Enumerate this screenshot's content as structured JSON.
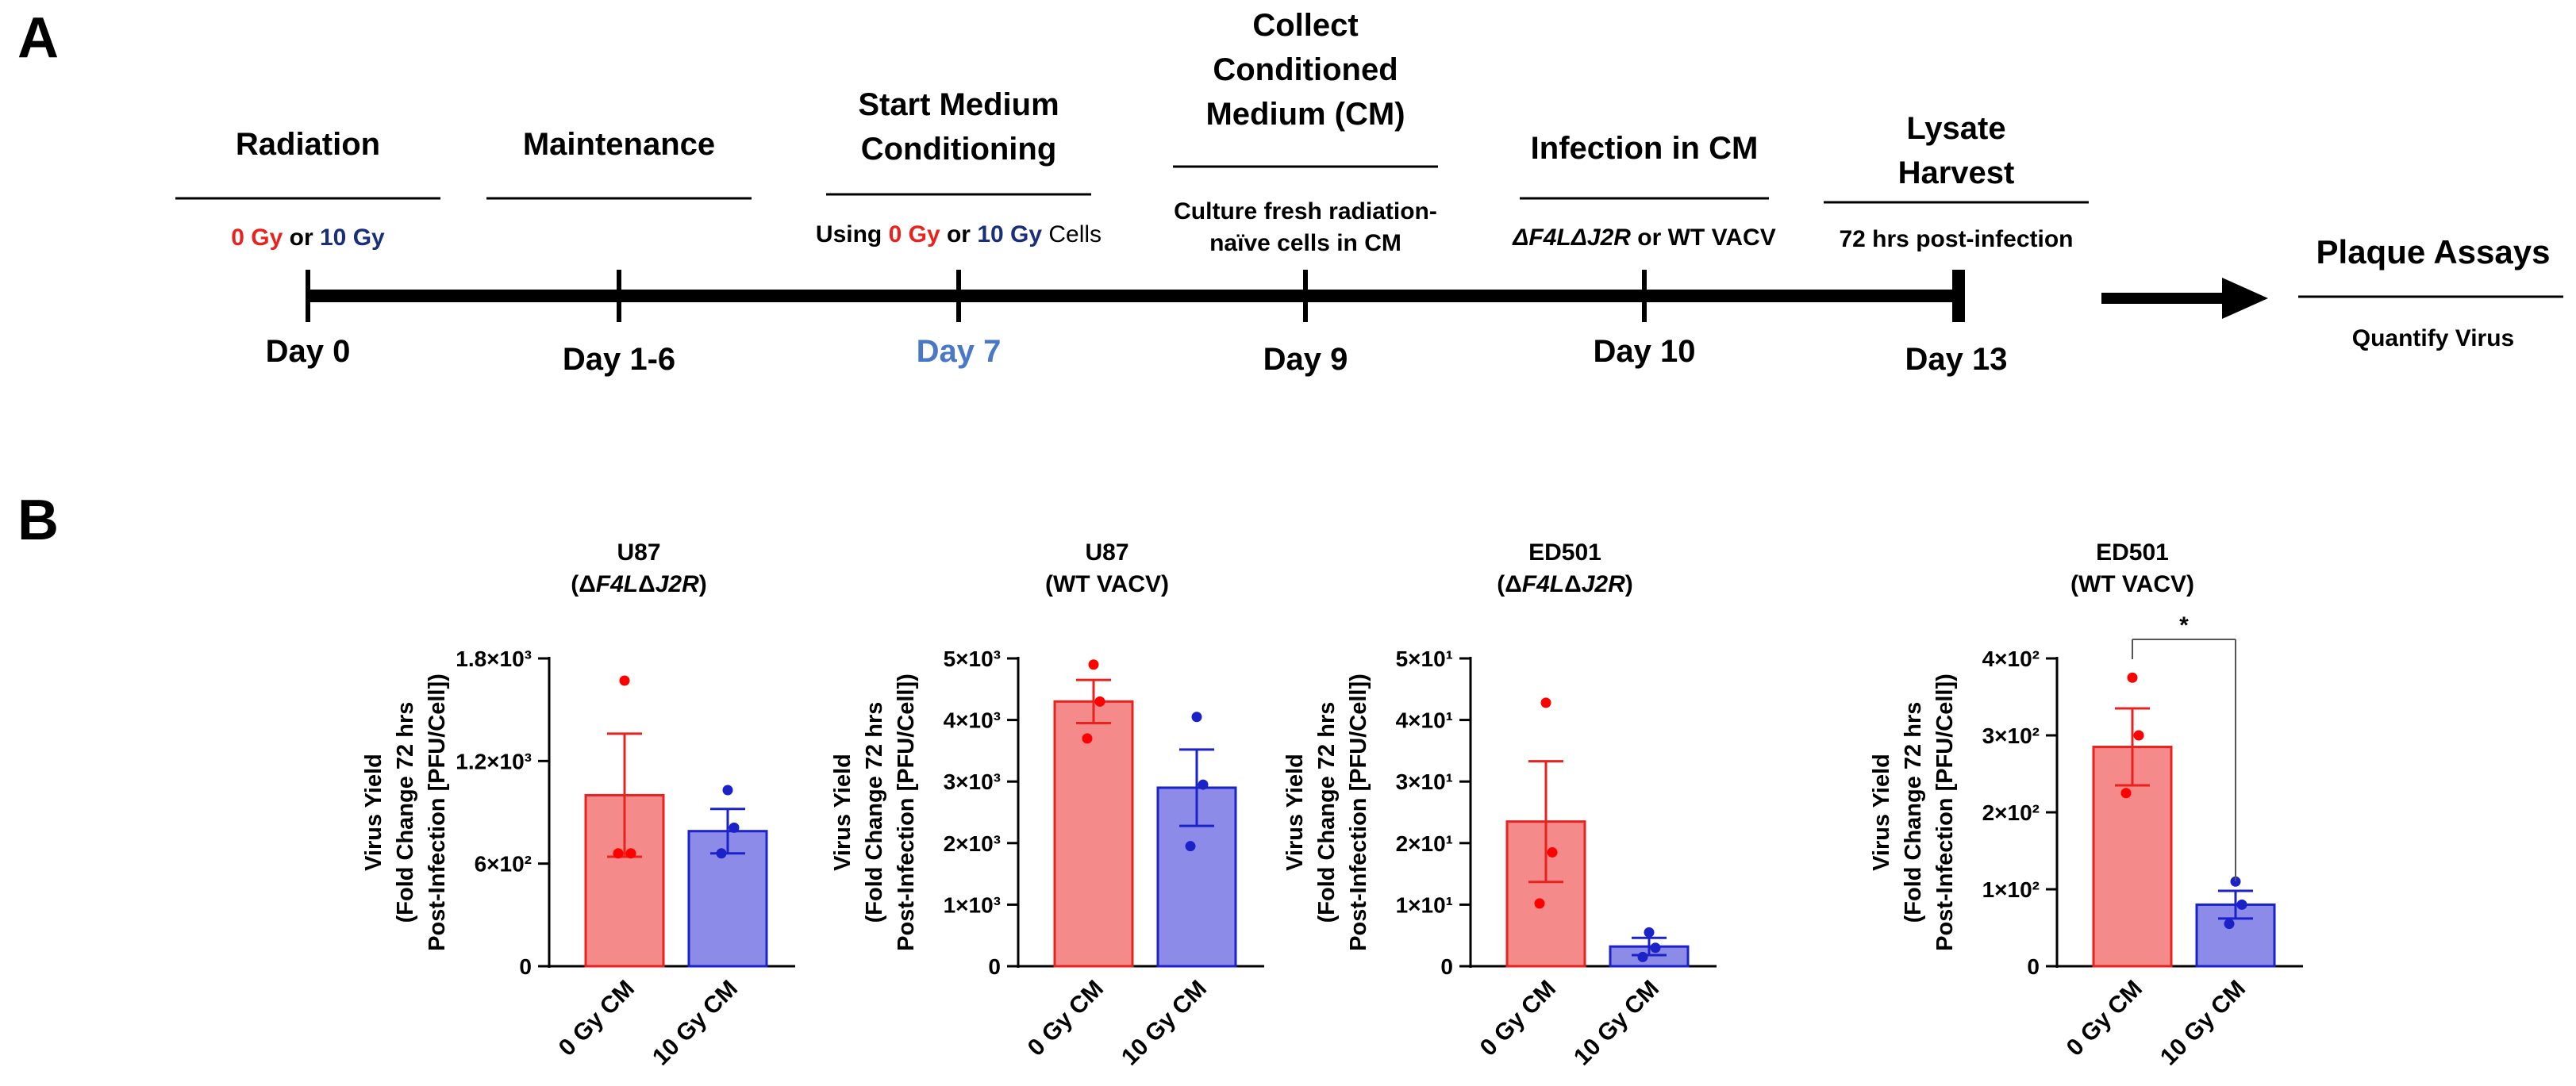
{
  "panel_a": {
    "label": "A",
    "stages": [
      {
        "title_lines": [
          "Radiation"
        ],
        "sub_parts": [
          [
            "0 Gy",
            "red"
          ],
          [
            " or ",
            "black"
          ],
          [
            "10 Gy",
            "navy"
          ]
        ],
        "sub2": "",
        "day": "Day 0",
        "day_color": "#000000"
      },
      {
        "title_lines": [
          "Maintenance"
        ],
        "sub_parts": [],
        "sub2": "",
        "day": "Day 1-6",
        "day_color": "#000000"
      },
      {
        "title_lines": [
          "Start Medium",
          "Conditioning"
        ],
        "sub_parts": [
          [
            "Using ",
            "black"
          ],
          [
            "0 Gy",
            "red"
          ],
          [
            " or ",
            "black"
          ],
          [
            "10 Gy",
            "navy"
          ],
          [
            " Cells",
            "black"
          ]
        ],
        "sub2": "",
        "day": "Day 7",
        "day_color": "#4a78c8"
      },
      {
        "title_lines": [
          "Collect",
          "Conditioned",
          "Medium (CM)"
        ],
        "sub_parts": [],
        "sub_lines": [
          "Culture fresh radiation-",
          "naïve cells in CM"
        ],
        "day": "Day 9",
        "day_color": "#000000"
      },
      {
        "title_lines": [
          "Infection in CM"
        ],
        "sub_parts": [
          [
            "ΔF4LΔJ2R",
            "italic"
          ],
          [
            " or WT VACV",
            "black"
          ]
        ],
        "sub2": "",
        "day": "Day 10",
        "day_color": "#000000"
      },
      {
        "title_lines": [
          "Lysate",
          "Harvest"
        ],
        "sub_parts": [
          [
            "72 hrs post-infection",
            "black"
          ]
        ],
        "sub2": "",
        "day": "Day 13",
        "day_color": "#000000"
      }
    ],
    "final": {
      "title": "Plaque Assays",
      "sub": "Quantify Virus"
    }
  },
  "panel_b": {
    "label": "B",
    "y_axis_title_lines": [
      "Virus Yield",
      "(Fold Change 72 hrs",
      "Post-Infection [PFU/Cell])"
    ]
  },
  "chart_data": [
    {
      "type": "bar",
      "title_lines": [
        "U87",
        "(ΔF4LΔJ2R)"
      ],
      "categories": [
        "0 Gy CM",
        "10 Gy CM"
      ],
      "values": [
        1000,
        790
      ],
      "sem": [
        360,
        130
      ],
      "points": [
        [
          1670,
          660,
          660
        ],
        [
          1030,
          810,
          660
        ]
      ],
      "ylim": [
        0,
        1800
      ],
      "ticks": [
        0,
        600,
        1200,
        1800
      ],
      "tick_labels": [
        "0",
        "6×10²",
        "1.2×10³",
        "1.8×10³"
      ],
      "significance": null
    },
    {
      "type": "bar",
      "title_lines": [
        "U87",
        "(WT  VACV)"
      ],
      "categories": [
        "0 Gy CM",
        "10 Gy CM"
      ],
      "values": [
        4300,
        2900
      ],
      "sem": [
        350,
        620
      ],
      "points": [
        [
          4900,
          4300,
          3700
        ],
        [
          4050,
          2950,
          1950
        ]
      ],
      "ylim": [
        0,
        5000
      ],
      "ticks": [
        0,
        1000,
        2000,
        3000,
        4000,
        5000
      ],
      "tick_labels": [
        "0",
        "1×10³",
        "2×10³",
        "3×10³",
        "4×10³",
        "5×10³"
      ],
      "significance": null
    },
    {
      "type": "bar",
      "title_lines": [
        "ED501",
        "(ΔF4LΔJ2R)"
      ],
      "categories": [
        "0 Gy CM",
        "10 Gy CM"
      ],
      "values": [
        23.5,
        3.2
      ],
      "sem": [
        9.8,
        1.4
      ],
      "points": [
        [
          42.8,
          18.5,
          10.2
        ],
        [
          5.5,
          3.0,
          1.5
        ]
      ],
      "ylim": [
        0,
        50
      ],
      "ticks": [
        0,
        10,
        20,
        30,
        40,
        50
      ],
      "tick_labels": [
        "0",
        "1×10¹",
        "2×10¹",
        "3×10¹",
        "4×10¹",
        "5×10¹"
      ],
      "significance": null
    },
    {
      "type": "bar",
      "title_lines": [
        "ED501",
        "(WT  VACV)"
      ],
      "categories": [
        "0 Gy CM",
        "10 Gy CM"
      ],
      "values": [
        285,
        80
      ],
      "sem": [
        50,
        18
      ],
      "points": [
        [
          375,
          300,
          225
        ],
        [
          110,
          80,
          55
        ]
      ],
      "ylim": [
        0,
        400
      ],
      "ticks": [
        0,
        100,
        200,
        300,
        400
      ],
      "tick_labels": [
        "0",
        "1×10²",
        "2×10²",
        "3×10²",
        "4×10²"
      ],
      "significance": "*"
    }
  ]
}
